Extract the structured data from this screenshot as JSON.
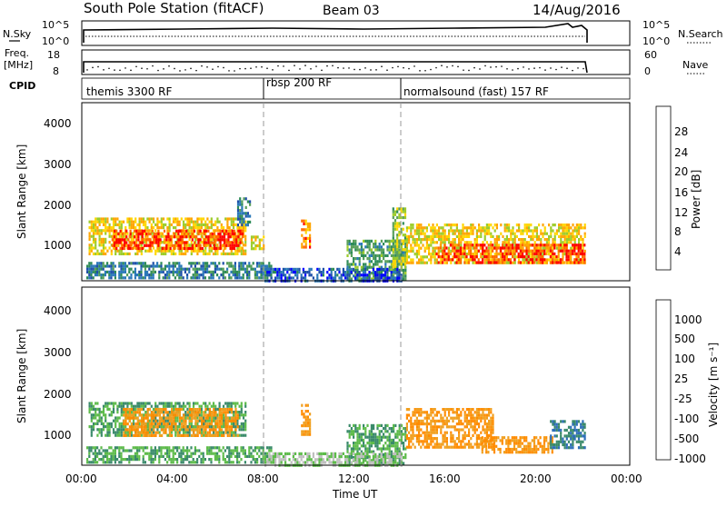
{
  "header": {
    "station": "South Pole Station (fitACF)",
    "beam": "Beam 03",
    "date": "14/Aug/2016"
  },
  "status_panels": {
    "nsky_label": "N.Sky",
    "nsearch_label": "N.Search",
    "nsky_ticks": [
      "10^5",
      "10^0"
    ],
    "nsky_ticks_right": [
      "10^5",
      "10^0"
    ],
    "freq_label_1": "Freq.",
    "freq_label_2": "[MHz]",
    "freq_ticks": [
      "18",
      "8"
    ],
    "nave_label": "Nave",
    "nave_ticks": [
      "60",
      "0"
    ],
    "cpid_label": "CPID",
    "cpid_segments": [
      "themis 3300 RF",
      "rbsp 200 RF",
      "normalsound (fast) 157 RF"
    ]
  },
  "axes": {
    "ylabel": "Slant Range [km]",
    "xlabel": "Time UT",
    "y_ticks": [
      "4000",
      "3000",
      "2000",
      "1000"
    ],
    "x_ticks": [
      "00:00",
      "04:00",
      "08:00",
      "12:00",
      "16:00",
      "20:00",
      "00:00"
    ]
  },
  "colorbars": {
    "power_label": "Power [dB]",
    "power_ticks": [
      "28",
      "24",
      "20",
      "16",
      "12",
      "8",
      "4"
    ],
    "velocity_label": "Velocity [m s⁻¹]",
    "velocity_ticks": [
      "1000",
      "500",
      "100",
      "25",
      "-25",
      "-100",
      "-500",
      "-1000"
    ]
  },
  "colors": {
    "power": [
      "#0000ff",
      "#1f4fa8",
      "#2a78b8",
      "#2e8b57",
      "#5aa05a",
      "#9ccc2a",
      "#ffd700",
      "#ffa500",
      "#ff6a00",
      "#ff0000"
    ],
    "velocity": [
      "#1c3fa8",
      "#2e6fb8",
      "#3a8a6a",
      "#5dbb4a",
      "#bfbfbf",
      "#f0a020",
      "#ff8c00",
      "#ff0000"
    ]
  },
  "chart_data": [
    {
      "type": "heatmap",
      "name": "power",
      "xlabel": "Time UT",
      "ylabel": "Slant Range [km]",
      "xlim": [
        0,
        24
      ],
      "ylim": [
        180,
        4600
      ],
      "colorbar": "Power [dB]",
      "blobs": [
        {
          "t0": 0.3,
          "t1": 7.2,
          "r0": 850,
          "r1": 1750,
          "v": 20
        },
        {
          "t0": 1.3,
          "t1": 7.0,
          "r0": 950,
          "r1": 1450,
          "v": 28
        },
        {
          "t0": 6.8,
          "t1": 7.4,
          "r0": 1550,
          "r1": 2250,
          "v": 8
        },
        {
          "t0": 0.2,
          "t1": 8.3,
          "r0": 250,
          "r1": 650,
          "v": 8
        },
        {
          "t0": 7.4,
          "t1": 8.0,
          "r0": 1000,
          "r1": 1300,
          "v": 20
        },
        {
          "t0": 9.6,
          "t1": 10.0,
          "r0": 1000,
          "r1": 1700,
          "v": 24
        },
        {
          "t0": 11.6,
          "t1": 14.2,
          "r0": 250,
          "r1": 1200,
          "v": 12
        },
        {
          "t0": 13.6,
          "t1": 14.2,
          "r0": 500,
          "r1": 2000,
          "v": 16
        },
        {
          "t0": 14.2,
          "t1": 22.0,
          "r0": 650,
          "r1": 1600,
          "v": 20
        },
        {
          "t0": 15.5,
          "t1": 22.0,
          "r0": 650,
          "r1": 1100,
          "v": 28
        },
        {
          "t0": 8.0,
          "t1": 14.0,
          "r0": 200,
          "r1": 500,
          "v": 4
        }
      ]
    },
    {
      "type": "heatmap",
      "name": "velocity",
      "xlabel": "Time UT",
      "ylabel": "Slant Range [km]",
      "xlim": [
        0,
        24
      ],
      "ylim": [
        180,
        4600
      ],
      "colorbar": "Velocity [m s⁻¹]",
      "blobs": [
        {
          "t0": 0.3,
          "t1": 7.2,
          "r0": 900,
          "r1": 1750,
          "v": 100
        },
        {
          "t0": 1.8,
          "t1": 6.8,
          "r0": 900,
          "r1": 1600,
          "v": -100
        },
        {
          "t0": 0.2,
          "t1": 8.3,
          "r0": 250,
          "r1": 650,
          "v": 100
        },
        {
          "t0": 9.6,
          "t1": 10.0,
          "r0": 950,
          "r1": 1700,
          "v": -100
        },
        {
          "t0": 11.6,
          "t1": 14.2,
          "r0": 250,
          "r1": 1200,
          "v": 100
        },
        {
          "t0": 14.2,
          "t1": 18.0,
          "r0": 650,
          "r1": 1600,
          "v": -100
        },
        {
          "t0": 17.5,
          "t1": 20.6,
          "r0": 500,
          "r1": 900,
          "v": -100
        },
        {
          "t0": 20.5,
          "t1": 22.0,
          "r0": 600,
          "r1": 1300,
          "v": 500
        },
        {
          "t0": 8.0,
          "t1": 14.0,
          "r0": 200,
          "r1": 500,
          "v": 25
        }
      ]
    }
  ]
}
